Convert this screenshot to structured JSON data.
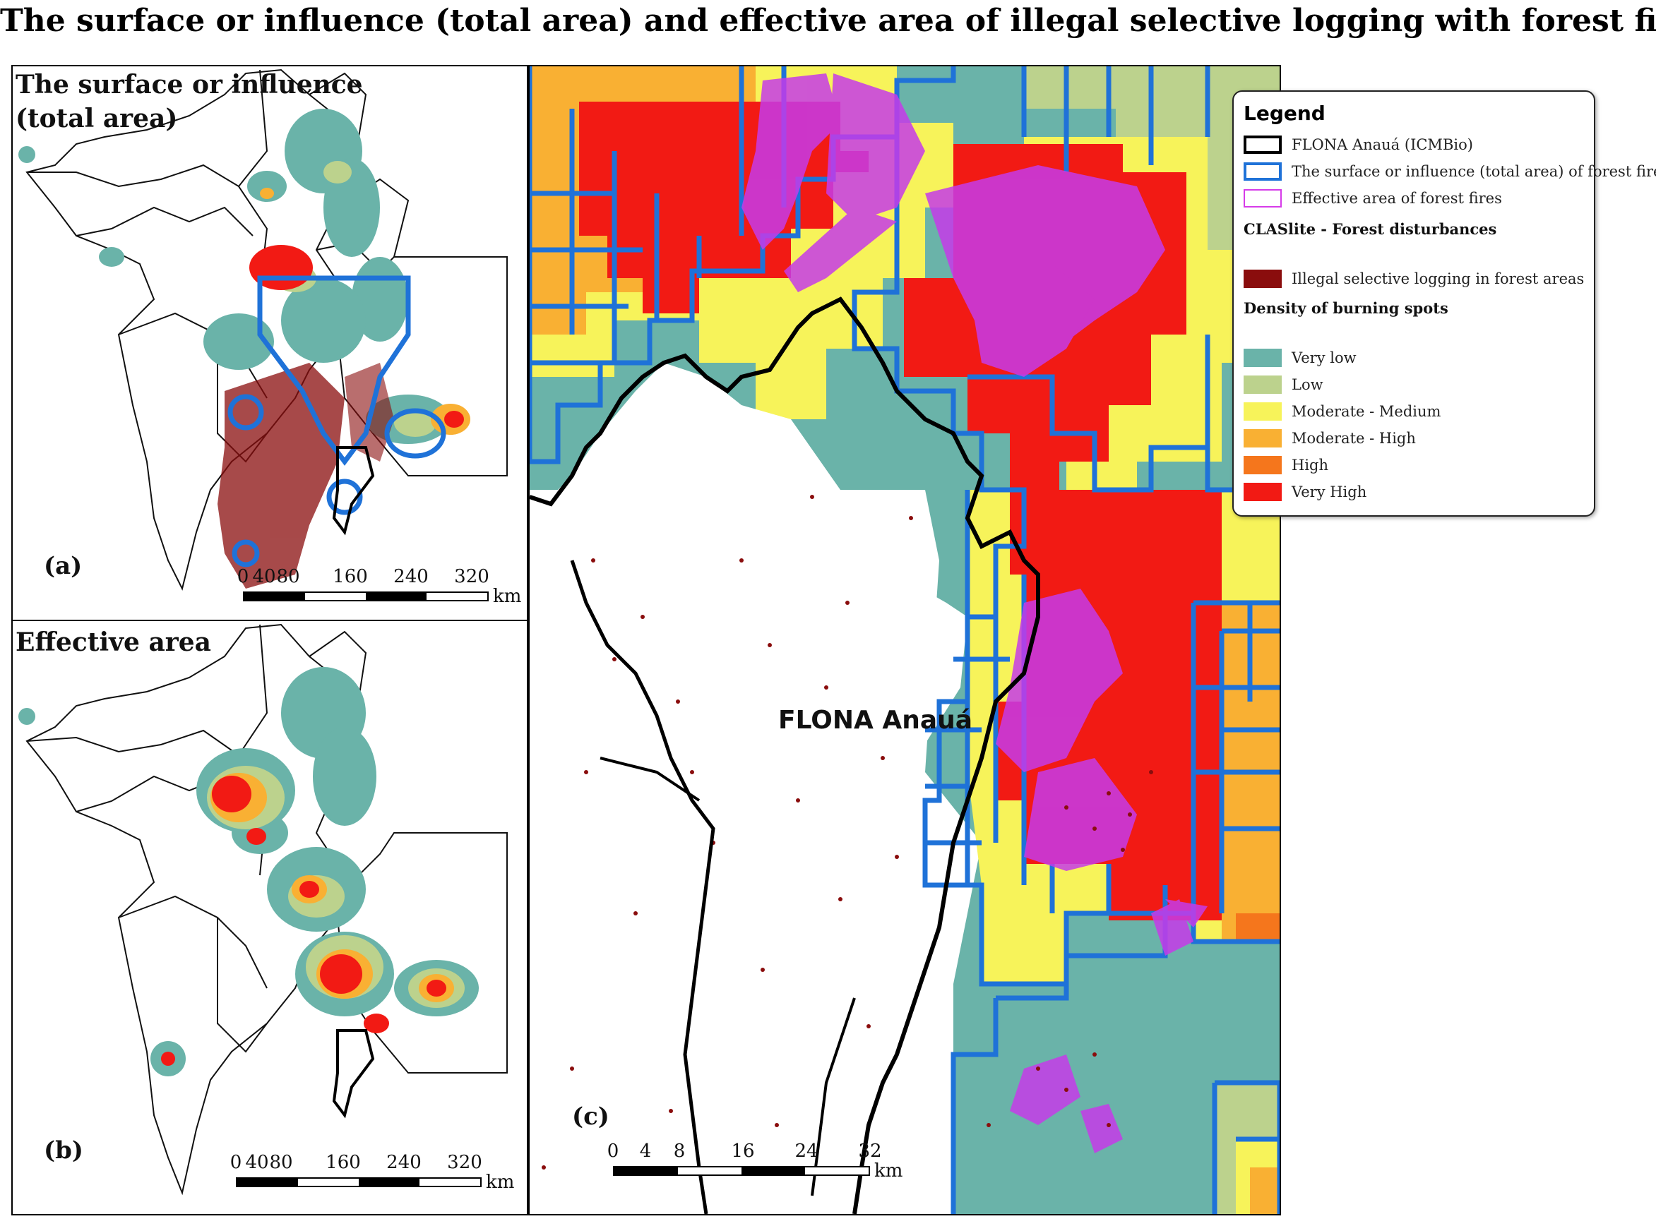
{
  "title": "The surface or influence (total area) and effective area of illegal selective logging  with forest fires",
  "colors": {
    "very_low": "#6ab3a9",
    "low": "#bcd28d",
    "moderate_medium": "#f7f35a",
    "moderate_high": "#f9b033",
    "high": "#f5761c",
    "very_high": "#f21a14",
    "logging": "#8a0d0d",
    "effective_fire": "#c63be9",
    "influence_outline": "#1f72d8",
    "flona_outline": "#000000"
  },
  "panel_a": {
    "title": "The surface or influence\n(total area)",
    "letter": "(a)",
    "scale_ticks": [
      "0",
      "40",
      "80",
      "160",
      "240",
      "320"
    ],
    "scale_unit": "km"
  },
  "panel_b": {
    "title": "Effective area",
    "letter": "(b)",
    "scale_ticks": [
      "0",
      "40",
      "80",
      "160",
      "240",
      "320"
    ],
    "scale_unit": "km"
  },
  "panel_c": {
    "letter": "(c)",
    "place_label": "FLONA Anauá",
    "scale_ticks": [
      "0",
      "4",
      "8",
      "16",
      "24",
      "32"
    ],
    "scale_unit": "km"
  },
  "legend": {
    "title": "Legend",
    "items": [
      {
        "label": "FLONA Anauá (ICMBio)",
        "kind": "outline",
        "color": "#000000"
      },
      {
        "label": "The surface or influence (total area) of forest fires",
        "kind": "outline",
        "color": "#1f72d8"
      },
      {
        "label": "Effective area of forest fires",
        "kind": "outline",
        "color": "#d63be9"
      }
    ],
    "heading_claslite": "CLASlite - Forest disturbances",
    "logging_label": "Illegal selective logging in forest areas",
    "heading_density": "Density of burning spots",
    "density_classes": [
      {
        "label": "Very low",
        "color": "#6ab3a9"
      },
      {
        "label": "Low",
        "color": "#bcd28d"
      },
      {
        "label": "Moderate - Medium",
        "color": "#f7f35a"
      },
      {
        "label": "Moderate - High",
        "color": "#f9b033"
      },
      {
        "label": "High",
        "color": "#f5761c"
      },
      {
        "label": "Very High",
        "color": "#f21a14"
      }
    ]
  }
}
